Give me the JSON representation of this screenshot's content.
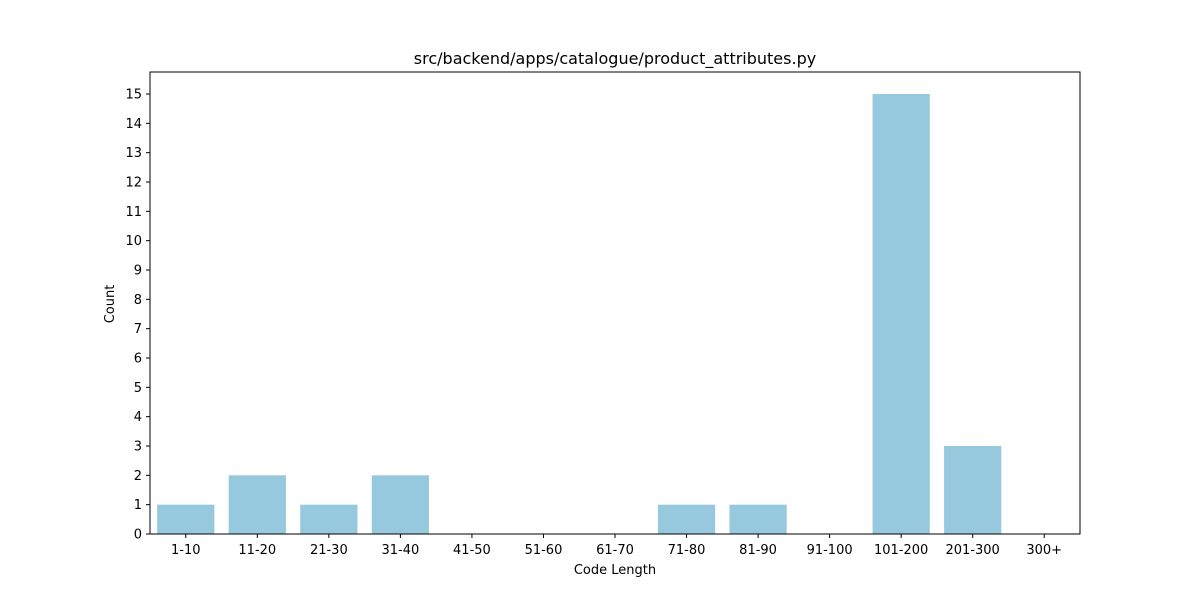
{
  "chart_data": {
    "type": "bar",
    "title": "src/backend/apps/catalogue/product_attributes.py",
    "xlabel": "Code Length",
    "ylabel": "Count",
    "categories": [
      "1-10",
      "11-20",
      "21-30",
      "31-40",
      "41-50",
      "51-60",
      "61-70",
      "71-80",
      "81-90",
      "91-100",
      "101-200",
      "201-300",
      "300+"
    ],
    "values": [
      1,
      2,
      1,
      2,
      0,
      0,
      0,
      1,
      1,
      0,
      15,
      3,
      0
    ],
    "ylim": [
      0,
      15.75
    ],
    "yticks": [
      0,
      1,
      2,
      3,
      4,
      5,
      6,
      7,
      8,
      9,
      10,
      11,
      12,
      13,
      14,
      15
    ],
    "grid": false,
    "bar_color": "#96c9de"
  }
}
